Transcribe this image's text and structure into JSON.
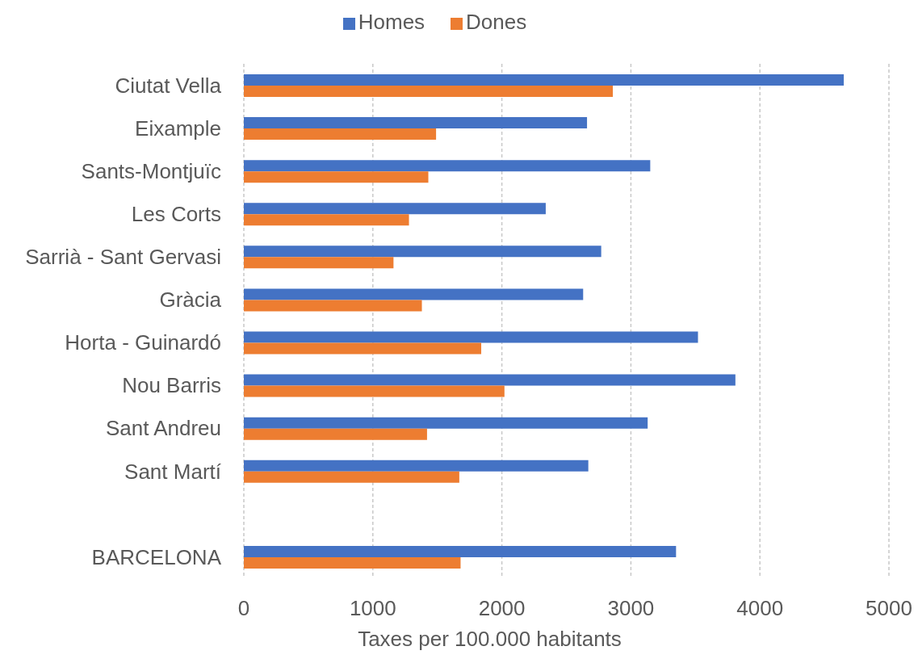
{
  "chart_data": {
    "type": "bar",
    "orientation": "horizontal",
    "legend": "top",
    "grid": "x",
    "categories": [
      "Ciutat Vella",
      "Eixample",
      "Sants-Montjuïc",
      "Les Corts",
      "Sarrià - Sant Gervasi",
      "Gràcia",
      "Horta - Guinardó",
      "Nou Barris",
      "Sant Andreu",
      "Sant Martí",
      null,
      "BARCELONA"
    ],
    "series": [
      {
        "name": "Homes",
        "color": "#4472c4",
        "values": [
          4650,
          2660,
          3150,
          2340,
          2770,
          2630,
          3520,
          3810,
          3130,
          2670,
          null,
          3350
        ]
      },
      {
        "name": "Dones",
        "color": "#ed7d31",
        "values": [
          2860,
          1490,
          1430,
          1280,
          1160,
          1380,
          1840,
          2020,
          1420,
          1670,
          null,
          1680
        ]
      }
    ],
    "xlabel": "Taxes per 100.000 habitants",
    "xlim": [
      0,
      5000
    ],
    "xticks": [
      0,
      1000,
      2000,
      3000,
      4000,
      5000
    ]
  }
}
